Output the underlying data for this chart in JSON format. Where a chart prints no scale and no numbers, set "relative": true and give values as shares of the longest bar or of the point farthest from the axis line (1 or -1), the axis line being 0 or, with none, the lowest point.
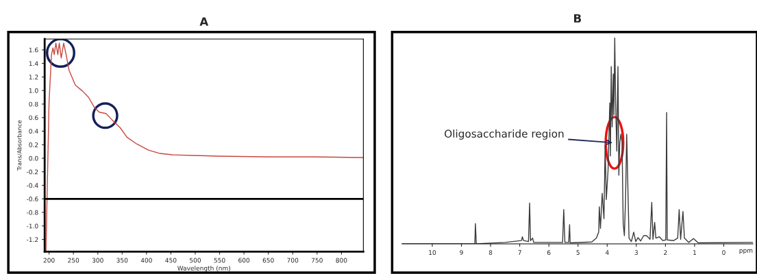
{
  "chart_data": [
    {
      "type": "line",
      "title": "A",
      "xlabel": "Wavelength (nm)",
      "ylabel": "Trans/Absorbance",
      "x": [
        193.7,
        196,
        200,
        205,
        208,
        210.6,
        214,
        218,
        221,
        225,
        230,
        235,
        241,
        254,
        269,
        281,
        293,
        303,
        317,
        329,
        346,
        360,
        380,
        404,
        428,
        453,
        501,
        549,
        646,
        743,
        844
      ],
      "series": [
        {
          "color": "#c8463f",
          "values": [
            -1.36,
            -0.56,
            0.83,
            1.53,
            1.63,
            1.53,
            1.7,
            1.53,
            1.7,
            1.48,
            1.7,
            1.53,
            1.3,
            1.08,
            0.99,
            0.9,
            0.75,
            0.68,
            0.66,
            0.57,
            0.45,
            0.31,
            0.21,
            0.12,
            0.07,
            0.05,
            0.04,
            0.03,
            0.02,
            0.02,
            0.01
          ]
        }
      ],
      "xlim": [
        191,
        845
      ],
      "ylim": [
        -1.38,
        1.76
      ],
      "xticks": [
        200,
        250,
        300,
        350,
        400,
        450,
        500,
        550,
        600,
        650,
        700,
        750,
        800
      ],
      "yticks": [
        {
          "value": -1.2,
          "label": "-1.2"
        },
        {
          "value": -1.0,
          "label": "-1.0"
        },
        {
          "value": -0.8,
          "label": "-0.8"
        },
        {
          "value": -0.6,
          "label": "-0.6"
        },
        {
          "value": -0.4,
          "label": "-0.4"
        },
        {
          "value": -0.2,
          "label": "-0.2"
        },
        {
          "value": 0.0,
          "label": "0.0"
        },
        {
          "value": 0.2,
          "label": "0.2"
        },
        {
          "value": 0.4,
          "label": "0.4"
        },
        {
          "value": 0.6,
          "label": "0.6"
        },
        {
          "value": 0.8,
          "label": "0.8"
        },
        {
          "value": 1.0,
          "label": "1.0"
        },
        {
          "value": 1.2,
          "label": "1.2"
        },
        {
          "value": 1.4,
          "label": "1.4"
        },
        {
          "value": 1.6,
          "label": "1.6"
        }
      ],
      "ref_lines": [
        {
          "axis": "y",
          "value": -0.6,
          "color": "#000000"
        }
      ],
      "grid": false,
      "legend": false
    },
    {
      "type": "line",
      "title": "B",
      "xlabel": "ppm",
      "relative": true,
      "tick_labels": "x",
      "x": [
        11.04,
        8.54,
        8.52,
        8.49,
        7.5,
        6.94,
        6.91,
        6.87,
        6.7,
        6.66,
        6.63,
        6.56,
        6.52,
        5.97,
        5.53,
        5.49,
        5.45,
        5.32,
        5.29,
        5.27,
        4.53,
        4.37,
        4.29,
        4.27,
        4.23,
        4.17,
        4.11,
        4.07,
        4.03,
        3.97,
        3.91,
        3.89,
        3.86,
        3.83,
        3.79,
        3.77,
        3.74,
        3.71,
        3.67,
        3.63,
        3.6,
        3.57,
        3.53,
        3.49,
        3.45,
        3.41,
        3.37,
        3.33,
        3.29,
        3.25,
        3.17,
        3.09,
        3.02,
        2.94,
        2.85,
        2.75,
        2.65,
        2.53,
        2.47,
        2.43,
        2.37,
        2.33,
        2.21,
        2.09,
        1.99,
        1.96,
        1.94,
        1.72,
        1.58,
        1.53,
        1.48,
        1.4,
        1.35,
        1.2,
        1.04,
        0.88,
        -1.0
      ],
      "series": [
        {
          "color": "#3a3a3a",
          "values": [
            0,
            0,
            0.098,
            0,
            0.007,
            0.016,
            0.034,
            0.016,
            0.011,
            0.198,
            0.016,
            0.028,
            0.007,
            0.007,
            0.007,
            0.166,
            0.007,
            0.007,
            0.093,
            0.005,
            0.009,
            0.028,
            0.057,
            0.18,
            0.075,
            0.245,
            0.122,
            0.479,
            0.215,
            0.356,
            0.684,
            0.426,
            0.86,
            0.567,
            0.824,
            0.625,
            1.0,
            0.684,
            0.45,
            0.86,
            0.333,
            0.485,
            0.532,
            0.496,
            0.098,
            0.04,
            0.215,
            0.532,
            0.274,
            0.028,
            0.011,
            0.057,
            0.011,
            0.03,
            0.014,
            0.04,
            0.04,
            0.022,
            0.201,
            0.022,
            0.104,
            0.028,
            0.034,
            0.016,
            0.019,
            0.637,
            0.019,
            0.016,
            0.028,
            0.166,
            0.022,
            0.157,
            0.028,
            0.007,
            0.026,
            0.005,
            0.007
          ]
        }
      ],
      "xlim": [
        11.04,
        -1.0
      ],
      "xticks": [
        10,
        9,
        8,
        7,
        6,
        5,
        4,
        3,
        2,
        1,
        0
      ],
      "annotations": [
        {
          "text": "Oligosaccharide region",
          "x": 3.75,
          "y": 0.49
        }
      ],
      "grid": false,
      "legend": false
    }
  ]
}
